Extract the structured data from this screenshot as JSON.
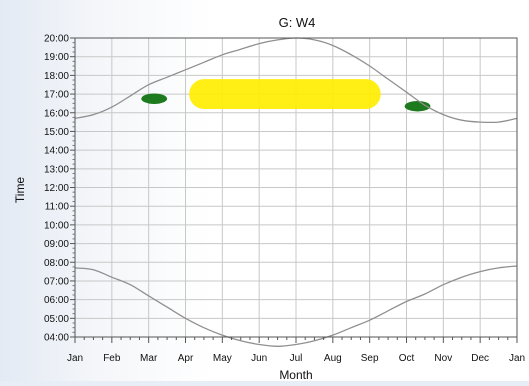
{
  "chart_data": {
    "type": "line",
    "title": "G: W4",
    "xlabel": "Month",
    "ylabel": "Time",
    "x_tick_labels": [
      "Jan",
      "Feb",
      "Mar",
      "Apr",
      "May",
      "Jun",
      "Jul",
      "Aug",
      "Sep",
      "Oct",
      "Nov",
      "Dec",
      "Jan"
    ],
    "y_tick_labels": [
      "04:00",
      "05:00",
      "06:00",
      "07:00",
      "08:00",
      "09:00",
      "10:00",
      "11:00",
      "12:00",
      "13:00",
      "14:00",
      "15:00",
      "16:00",
      "17:00",
      "18:00",
      "19:00",
      "20:00"
    ],
    "xlim": [
      0,
      12
    ],
    "ylim": [
      4,
      20
    ],
    "grid": true,
    "series": [
      {
        "color": "#909090",
        "x": [
          0,
          0.5,
          1,
          1.5,
          2,
          2.5,
          3,
          3.5,
          4,
          4.5,
          5,
          5.5,
          6,
          6.5,
          7,
          7.5,
          8,
          8.5,
          9,
          9.5,
          10,
          10.5,
          11,
          11.5,
          12
        ],
        "y": [
          15.7,
          15.9,
          16.3,
          16.9,
          17.5,
          17.9,
          18.3,
          18.7,
          19.1,
          19.4,
          19.7,
          19.9,
          20.0,
          19.9,
          19.6,
          19.1,
          18.5,
          17.8,
          17.1,
          16.4,
          15.9,
          15.6,
          15.5,
          15.5,
          15.7
        ]
      },
      {
        "color": "#909090",
        "x": [
          0,
          0.5,
          1,
          1.5,
          2,
          2.5,
          3,
          3.5,
          4,
          4.5,
          5,
          5.5,
          6,
          6.5,
          7,
          7.5,
          8,
          8.5,
          9,
          9.5,
          10,
          10.5,
          11,
          11.5,
          12
        ],
        "y": [
          7.7,
          7.6,
          7.2,
          6.8,
          6.2,
          5.6,
          5.0,
          4.5,
          4.1,
          3.8,
          3.6,
          3.5,
          3.6,
          3.8,
          4.1,
          4.5,
          4.9,
          5.4,
          5.9,
          6.3,
          6.8,
          7.2,
          7.5,
          7.7,
          7.8
        ]
      }
    ],
    "highlights": [
      {
        "color": "#ffee00",
        "x_range": [
          3.1,
          8.3
        ],
        "y_range": [
          16.2,
          17.8
        ]
      },
      {
        "color": "#1e7a1e",
        "x_center": 2.15,
        "y_center": 16.75,
        "x_radius": 0.35,
        "y_radius": 0.28
      },
      {
        "color": "#1e7a1e",
        "x_center": 9.3,
        "y_center": 16.35,
        "x_radius": 0.35,
        "y_radius": 0.28
      }
    ]
  }
}
